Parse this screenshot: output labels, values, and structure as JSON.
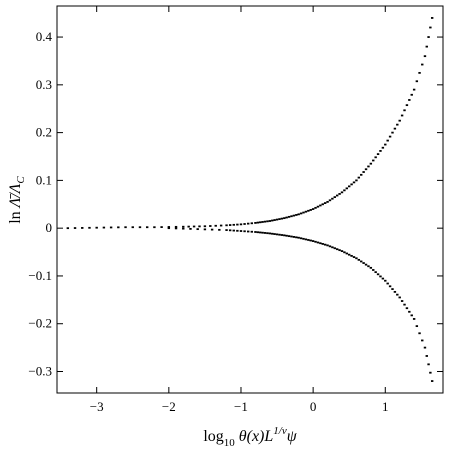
{
  "chart_data": {
    "type": "scatter",
    "title": "",
    "xlabel_parts": [
      "log",
      "10",
      " θ(x)L",
      "1/ν",
      "ψ"
    ],
    "ylabel_parts": [
      "ln ",
      "Λ̄",
      "/Λ",
      "C"
    ],
    "xlim": [
      -3.55,
      1.8
    ],
    "ylim": [
      -0.345,
      0.465
    ],
    "xticks": [
      -3,
      -2,
      -1,
      0,
      1
    ],
    "xtick_labels": [
      "−3",
      "−2",
      "−1",
      "0",
      "1"
    ],
    "yticks": [
      -0.3,
      -0.2,
      -0.1,
      0,
      0.1,
      0.2,
      0.3,
      0.4
    ],
    "ytick_labels": [
      "−0.3",
      "−0.2",
      "−0.1",
      "0",
      "0.1",
      "0.2",
      "0.3",
      "0.4"
    ],
    "grid": false,
    "legend": "none",
    "series": [
      {
        "branch": "upper",
        "x": [
          -3.4,
          -3.0,
          -2.6,
          -2.2,
          -1.8,
          -1.5,
          -1.2,
          -1.0,
          -0.8,
          -0.6,
          -0.4,
          -0.2,
          0.0,
          0.2,
          0.4,
          0.6,
          0.8,
          1.0,
          1.2,
          1.4,
          1.55,
          1.65
        ],
        "y": [
          0.0,
          0.001,
          0.002,
          0.002,
          0.003,
          0.004,
          0.006,
          0.008,
          0.011,
          0.015,
          0.021,
          0.029,
          0.04,
          0.055,
          0.075,
          0.1,
          0.135,
          0.175,
          0.225,
          0.29,
          0.36,
          0.44
        ]
      },
      {
        "branch": "lower",
        "x": [
          -2.0,
          -1.6,
          -1.2,
          -1.0,
          -0.8,
          -0.6,
          -0.4,
          -0.2,
          0.0,
          0.2,
          0.4,
          0.6,
          0.8,
          1.0,
          1.2,
          1.4,
          1.55,
          1.65
        ],
        "y": [
          0.0,
          -0.002,
          -0.004,
          -0.006,
          -0.008,
          -0.011,
          -0.015,
          -0.02,
          -0.027,
          -0.036,
          -0.048,
          -0.063,
          -0.083,
          -0.11,
          -0.145,
          -0.19,
          -0.25,
          -0.32
        ]
      }
    ]
  }
}
